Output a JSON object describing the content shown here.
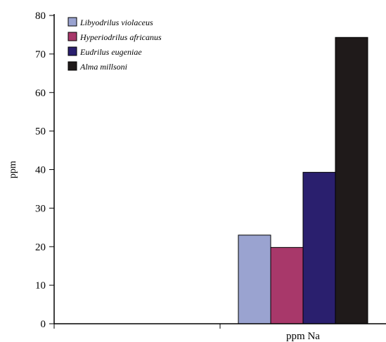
{
  "chart_data": {
    "type": "bar",
    "categories": [
      "",
      "ppm Na"
    ],
    "series": [
      {
        "name": "Libyodrilus violaceus",
        "values": [
          0,
          23
        ],
        "color": "#9aa3d0"
      },
      {
        "name": "Hyperiodrilus africanus",
        "values": [
          0,
          19.8
        ],
        "color": "#a8386a"
      },
      {
        "name": "Eudrilus eugeniae",
        "values": [
          0,
          39.3
        ],
        "color": "#2a1f6e"
      },
      {
        "name": "Alma millsoni",
        "values": [
          0,
          74.3
        ],
        "color": "#1f1a1a"
      }
    ],
    "xlabel": "",
    "ylabel": "ppm",
    "ylim": [
      0,
      80
    ],
    "yticks": [
      0,
      10,
      20,
      30,
      40,
      50,
      60,
      70,
      80
    ],
    "grid": false,
    "legend": "top-left"
  }
}
